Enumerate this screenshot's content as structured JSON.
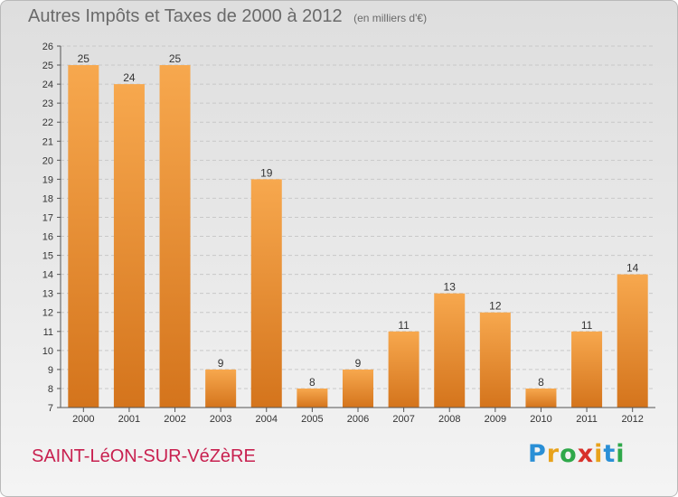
{
  "header": {
    "title": "Autres Impôts et Taxes de 2000 à 2012",
    "unit": "(en milliers d'€)"
  },
  "footer": {
    "commune": "SAINT-LéON-SUR-VéZèRE",
    "logo_letters": [
      "P",
      "r",
      "o",
      "x",
      "i",
      "t",
      "i"
    ],
    "logo_colors": [
      "#2a8fd6",
      "#e8a21b",
      "#2fa84a",
      "#d8312a",
      "#e8a21b",
      "#2a8fd6",
      "#2fa84a"
    ]
  },
  "colors": {
    "bar_light": "#f7a84e",
    "bar_dark": "#d4741c",
    "axis": "#555555",
    "grid": "#c8c8c8",
    "text": "#333333"
  },
  "chart_data": {
    "type": "bar",
    "categories": [
      "2000",
      "2001",
      "2002",
      "2003",
      "2004",
      "2005",
      "2006",
      "2007",
      "2008",
      "2009",
      "2010",
      "2011",
      "2012"
    ],
    "values": [
      25,
      24,
      25,
      9,
      19,
      8,
      9,
      11,
      13,
      12,
      8,
      11,
      14
    ],
    "data_labels": [
      "25",
      "24",
      "25",
      "9",
      "19",
      "8",
      "9",
      "11",
      "13",
      "12",
      "8",
      "11",
      "14"
    ],
    "yticks": [
      "7",
      "8",
      "9",
      "10",
      "11",
      "12",
      "13",
      "14",
      "15",
      "16",
      "17",
      "18",
      "19",
      "20",
      "21",
      "22",
      "23",
      "24",
      "25",
      "26"
    ],
    "ylim": [
      7,
      26
    ],
    "grid": true
  }
}
